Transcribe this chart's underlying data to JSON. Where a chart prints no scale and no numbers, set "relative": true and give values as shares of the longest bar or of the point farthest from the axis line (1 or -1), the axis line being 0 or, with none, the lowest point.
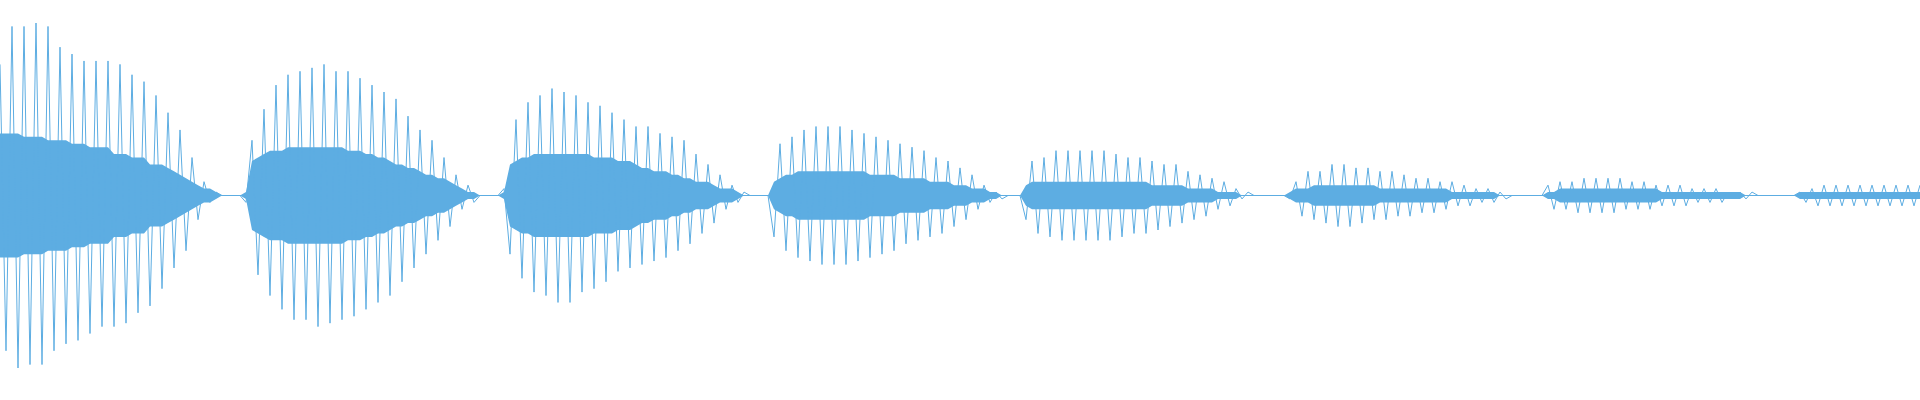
{
  "chart_data": {
    "type": "line",
    "relative": true,
    "categories": [
      null,
      null,
      null,
      null,
      null,
      null,
      null,
      null,
      null,
      null,
      null,
      null,
      null,
      null,
      null,
      null,
      null,
      null,
      null,
      null,
      null,
      null,
      null,
      null,
      null,
      null,
      null,
      null,
      null,
      null,
      null,
      null,
      null,
      null,
      null,
      null,
      null,
      null,
      null,
      null,
      null,
      null,
      null,
      null,
      null,
      null,
      null,
      null,
      null,
      null,
      null,
      null,
      null,
      null,
      null,
      null,
      null,
      null,
      null,
      null,
      null,
      null,
      null,
      null,
      null,
      null,
      null,
      null,
      null,
      null,
      null,
      null,
      null,
      null,
      null,
      null,
      null,
      null,
      null,
      null,
      null,
      null,
      null,
      null,
      null,
      null,
      null,
      null,
      null,
      null,
      null,
      null,
      null,
      null,
      null,
      null,
      null,
      null,
      null,
      null,
      null,
      null,
      null,
      null,
      null,
      null,
      null,
      null,
      null,
      null,
      null,
      null,
      null,
      null,
      null,
      null,
      null,
      null,
      null,
      null,
      null,
      null,
      null,
      null,
      null,
      null,
      null,
      null,
      null,
      null,
      null,
      null,
      null,
      null,
      null,
      null,
      null,
      null,
      null,
      null,
      null,
      null,
      null,
      null,
      null,
      null,
      null,
      null,
      null,
      null,
      null,
      null,
      null,
      null,
      null,
      null,
      null,
      null,
      null,
      null,
      null,
      null,
      null,
      null,
      null,
      null,
      null,
      null,
      null,
      null,
      null,
      null,
      null,
      null,
      null,
      null,
      null,
      null,
      null,
      null,
      null,
      null,
      null,
      null,
      null,
      null,
      null,
      null,
      null,
      null,
      null,
      null,
      null,
      null,
      null,
      null,
      null,
      null,
      null,
      null,
      null,
      null,
      null,
      null,
      null,
      null,
      null,
      null,
      null,
      null,
      null,
      null,
      null,
      null,
      null,
      null,
      null,
      null,
      null,
      null,
      null,
      null,
      null,
      null,
      null,
      null,
      null,
      null,
      null,
      null,
      null,
      null,
      null,
      null,
      null,
      null,
      null,
      null,
      null,
      null,
      null,
      null,
      null,
      null,
      null,
      null,
      null,
      null,
      null,
      null,
      null,
      null,
      null,
      null,
      null,
      null,
      null,
      null,
      null,
      null,
      null,
      null,
      null,
      null,
      null,
      null,
      null,
      null,
      null,
      null,
      null,
      null,
      null,
      null,
      null,
      null,
      null,
      null,
      null,
      null,
      null,
      null,
      null,
      null,
      null,
      null,
      null,
      null,
      null,
      null,
      null,
      null,
      null,
      null,
      null,
      null,
      null,
      null,
      null,
      null,
      null,
      null,
      null,
      null,
      null,
      null,
      null,
      null,
      null,
      null,
      null,
      null,
      null,
      null,
      null,
      null,
      null,
      null,
      null,
      null,
      null
    ],
    "ref_lines": [
      {
        "axis": "y",
        "value": 0,
        "color": "#5dade2"
      }
    ],
    "series": [
      {
        "color": "#5dade2",
        "values": [
          0.76,
          -0.9,
          0.98,
          -1,
          0.98,
          -0.98,
          1,
          -0.98,
          0.98,
          -0.9,
          0.86,
          -0.86,
          0.82,
          -0.84,
          0.78,
          -0.8,
          0.78,
          -0.76,
          0.78,
          -0.76,
          0.76,
          -0.74,
          0.7,
          -0.68,
          0.66,
          -0.64,
          0.58,
          -0.54,
          0.48,
          -0.42,
          0.38,
          -0.32,
          0.22,
          -0.14,
          0.08,
          -0.04,
          0.02,
          0,
          0,
          0,
          0,
          -0.04,
          0.32,
          -0.46,
          0.5,
          -0.58,
          0.64,
          -0.66,
          0.7,
          -0.72,
          0.72,
          -0.72,
          0.74,
          -0.76,
          0.76,
          -0.74,
          0.72,
          -0.72,
          0.72,
          -0.7,
          0.68,
          -0.66,
          0.64,
          -0.62,
          0.6,
          -0.58,
          0.56,
          -0.5,
          0.46,
          -0.42,
          0.38,
          -0.34,
          0.32,
          -0.26,
          0.22,
          -0.18,
          0.12,
          -0.08,
          0.06,
          -0.04,
          0,
          0,
          0,
          0,
          0.04,
          -0.34,
          0.44,
          -0.48,
          0.54,
          -0.56,
          0.58,
          -0.58,
          0.62,
          -0.62,
          0.6,
          -0.62,
          0.58,
          -0.56,
          0.54,
          -0.54,
          0.52,
          -0.5,
          0.48,
          -0.44,
          0.44,
          -0.42,
          0.4,
          -0.4,
          0.4,
          -0.38,
          0.36,
          -0.36,
          0.34,
          -0.32,
          0.32,
          -0.28,
          0.24,
          -0.22,
          0.18,
          -0.16,
          0.12,
          -0.08,
          0.06,
          -0.04,
          0.02,
          0,
          0,
          0,
          0,
          -0.24,
          0.3,
          -0.32,
          0.34,
          -0.36,
          0.38,
          -0.38,
          0.4,
          -0.4,
          0.4,
          -0.4,
          0.4,
          -0.4,
          0.38,
          -0.38,
          0.36,
          -0.36,
          0.34,
          -0.34,
          0.32,
          -0.32,
          0.3,
          -0.28,
          0.28,
          -0.26,
          0.26,
          -0.24,
          0.22,
          -0.22,
          0.2,
          -0.18,
          0.16,
          -0.14,
          0.12,
          -0.08,
          0.06,
          -0.04,
          0.02,
          -0.02,
          0,
          0,
          0,
          -0.14,
          0.2,
          -0.22,
          0.22,
          -0.24,
          0.26,
          -0.26,
          0.26,
          -0.26,
          0.26,
          -0.26,
          0.26,
          -0.26,
          0.26,
          -0.26,
          0.24,
          -0.24,
          0.22,
          -0.22,
          0.22,
          -0.22,
          0.2,
          -0.2,
          0.18,
          -0.18,
          0.18,
          -0.16,
          0.14,
          -0.14,
          0.12,
          -0.12,
          0.1,
          -0.08,
          0.08,
          -0.06,
          0.04,
          -0.02,
          0.02,
          0,
          0,
          0,
          0,
          0,
          0,
          -0.02,
          0.08,
          -0.12,
          0.14,
          -0.14,
          0.14,
          -0.16,
          0.18,
          -0.18,
          0.18,
          -0.18,
          0.16,
          -0.16,
          0.16,
          -0.14,
          0.14,
          -0.14,
          0.14,
          -0.12,
          0.12,
          -0.12,
          0.1,
          -0.1,
          0.1,
          -0.1,
          0.08,
          -0.08,
          0.08,
          -0.06,
          0.06,
          -0.06,
          0.04,
          -0.04,
          0.04,
          -0.04,
          0.02,
          -0.02,
          0,
          0,
          0,
          0,
          0,
          0,
          0.06,
          -0.08,
          0.08,
          -0.08,
          0.08,
          -0.1,
          0.1,
          -0.1,
          0.1,
          -0.1,
          0.1,
          -0.1,
          0.1,
          -0.08,
          0.08,
          -0.08,
          0.08,
          -0.08,
          0.06,
          -0.06,
          0.06,
          -0.06,
          0.06,
          -0.06,
          0.04,
          -0.04,
          0.04,
          -0.04,
          0.04,
          -0.04,
          0.02,
          -0.02,
          0.02,
          -0.02,
          0.02,
          0,
          0,
          0,
          0,
          0,
          0,
          0,
          0.02,
          -0.04,
          0.04,
          -0.06,
          0.06,
          -0.06,
          0.06,
          -0.06,
          0.06,
          -0.06,
          0.06,
          -0.06,
          0.06,
          -0.06,
          0.06,
          -0.06,
          0.06,
          -0.06,
          0.06,
          -0.06,
          0.06
        ],
        "upper": [
          0.36,
          0.36,
          0.36,
          0.36,
          0.34,
          0.34,
          0.34,
          0.34,
          0.32,
          0.32,
          0.32,
          0.32,
          0.3,
          0.3,
          0.3,
          0.28,
          0.28,
          0.28,
          0.28,
          0.24,
          0.24,
          0.24,
          0.22,
          0.22,
          0.22,
          0.18,
          0.18,
          0.18,
          0.16,
          0.14,
          0.12,
          0.1,
          0.08,
          0.06,
          0.04,
          0.04,
          0.02,
          0,
          0,
          0,
          0,
          0.02,
          0.2,
          0.22,
          0.24,
          0.26,
          0.26,
          0.26,
          0.28,
          0.28,
          0.28,
          0.28,
          0.28,
          0.28,
          0.28,
          0.28,
          0.28,
          0.28,
          0.26,
          0.26,
          0.26,
          0.24,
          0.24,
          0.22,
          0.22,
          0.2,
          0.18,
          0.18,
          0.16,
          0.16,
          0.14,
          0.12,
          0.12,
          0.1,
          0.1,
          0.08,
          0.06,
          0.04,
          0.02,
          0.02,
          0,
          0,
          0,
          0,
          0.02,
          0.18,
          0.2,
          0.22,
          0.22,
          0.24,
          0.24,
          0.24,
          0.24,
          0.24,
          0.24,
          0.24,
          0.24,
          0.24,
          0.24,
          0.22,
          0.22,
          0.22,
          0.22,
          0.2,
          0.2,
          0.2,
          0.18,
          0.16,
          0.16,
          0.14,
          0.14,
          0.14,
          0.12,
          0.12,
          0.1,
          0.1,
          0.08,
          0.08,
          0.08,
          0.06,
          0.04,
          0.04,
          0.04,
          0.02,
          0,
          0,
          0,
          0,
          0,
          0.08,
          0.1,
          0.12,
          0.12,
          0.14,
          0.14,
          0.14,
          0.14,
          0.14,
          0.14,
          0.14,
          0.14,
          0.14,
          0.14,
          0.14,
          0.14,
          0.12,
          0.12,
          0.12,
          0.12,
          0.12,
          0.1,
          0.1,
          0.1,
          0.1,
          0.1,
          0.08,
          0.08,
          0.08,
          0.08,
          0.06,
          0.06,
          0.06,
          0.04,
          0.04,
          0.04,
          0.02,
          0.02,
          0,
          0,
          0,
          0,
          0.06,
          0.08,
          0.08,
          0.08,
          0.08,
          0.08,
          0.08,
          0.08,
          0.08,
          0.08,
          0.08,
          0.08,
          0.08,
          0.08,
          0.08,
          0.08,
          0.08,
          0.08,
          0.08,
          0.08,
          0.08,
          0.06,
          0.06,
          0.06,
          0.06,
          0.06,
          0.06,
          0.04,
          0.04,
          0.04,
          0.04,
          0.04,
          0.02,
          0.02,
          0.02,
          0.02,
          0,
          0,
          0,
          0,
          0,
          0,
          0,
          0,
          0.02,
          0.04,
          0.04,
          0.04,
          0.06,
          0.06,
          0.06,
          0.06,
          0.06,
          0.06,
          0.06,
          0.06,
          0.06,
          0.06,
          0.06,
          0.04,
          0.04,
          0.04,
          0.04,
          0.04,
          0.04,
          0.04,
          0.04,
          0.04,
          0.04,
          0.04,
          0.04,
          0.02,
          0.02,
          0.02,
          0.02,
          0.02,
          0.02,
          0.02,
          0.02,
          0,
          0,
          0,
          0,
          0,
          0,
          0,
          0,
          0.02,
          0.02,
          0.04,
          0.04,
          0.04,
          0.04,
          0.04,
          0.04,
          0.04,
          0.04,
          0.04,
          0.04,
          0.04,
          0.04,
          0.04,
          0.04,
          0.04,
          0.04,
          0.04,
          0.02,
          0.02,
          0.02,
          0.02,
          0.02,
          0.02,
          0.02,
          0.02,
          0.02,
          0.02,
          0.02,
          0.02,
          0.02,
          0.02,
          0,
          0,
          0,
          0,
          0,
          0,
          0,
          0,
          0,
          0.02,
          0.02,
          0.02,
          0.02,
          0.02,
          0.02,
          0.02,
          0.02,
          0.02,
          0.02,
          0.02,
          0.02,
          0.02,
          0.02,
          0.02,
          0.02,
          0.02,
          0.02,
          0.02,
          0.02,
          0.02
        ],
        "lower": [
          -0.36,
          -0.36,
          -0.36,
          -0.36,
          -0.34,
          -0.34,
          -0.34,
          -0.34,
          -0.32,
          -0.32,
          -0.32,
          -0.32,
          -0.3,
          -0.3,
          -0.3,
          -0.28,
          -0.28,
          -0.28,
          -0.28,
          -0.24,
          -0.24,
          -0.24,
          -0.22,
          -0.22,
          -0.22,
          -0.18,
          -0.18,
          -0.18,
          -0.16,
          -0.14,
          -0.12,
          -0.1,
          -0.08,
          -0.06,
          -0.04,
          -0.04,
          -0.02,
          0,
          0,
          0,
          0,
          -0.02,
          -0.2,
          -0.22,
          -0.24,
          -0.26,
          -0.26,
          -0.26,
          -0.28,
          -0.28,
          -0.28,
          -0.28,
          -0.28,
          -0.28,
          -0.28,
          -0.28,
          -0.28,
          -0.28,
          -0.26,
          -0.26,
          -0.26,
          -0.24,
          -0.24,
          -0.22,
          -0.22,
          -0.2,
          -0.18,
          -0.18,
          -0.16,
          -0.16,
          -0.14,
          -0.12,
          -0.12,
          -0.1,
          -0.1,
          -0.08,
          -0.06,
          -0.04,
          -0.02,
          -0.02,
          0,
          0,
          0,
          0,
          -0.02,
          -0.18,
          -0.2,
          -0.22,
          -0.22,
          -0.24,
          -0.24,
          -0.24,
          -0.24,
          -0.24,
          -0.24,
          -0.24,
          -0.24,
          -0.24,
          -0.24,
          -0.22,
          -0.22,
          -0.22,
          -0.22,
          -0.2,
          -0.2,
          -0.2,
          -0.18,
          -0.16,
          -0.16,
          -0.14,
          -0.14,
          -0.14,
          -0.12,
          -0.12,
          -0.1,
          -0.1,
          -0.08,
          -0.08,
          -0.08,
          -0.06,
          -0.04,
          -0.04,
          -0.04,
          -0.02,
          0,
          0,
          0,
          0,
          0,
          -0.08,
          -0.1,
          -0.12,
          -0.12,
          -0.14,
          -0.14,
          -0.14,
          -0.14,
          -0.14,
          -0.14,
          -0.14,
          -0.14,
          -0.14,
          -0.14,
          -0.14,
          -0.14,
          -0.12,
          -0.12,
          -0.12,
          -0.12,
          -0.12,
          -0.1,
          -0.1,
          -0.1,
          -0.1,
          -0.1,
          -0.08,
          -0.08,
          -0.08,
          -0.08,
          -0.06,
          -0.06,
          -0.06,
          -0.04,
          -0.04,
          -0.04,
          -0.02,
          -0.02,
          0,
          0,
          0,
          0,
          -0.06,
          -0.08,
          -0.08,
          -0.08,
          -0.08,
          -0.08,
          -0.08,
          -0.08,
          -0.08,
          -0.08,
          -0.08,
          -0.08,
          -0.08,
          -0.08,
          -0.08,
          -0.08,
          -0.08,
          -0.08,
          -0.08,
          -0.08,
          -0.08,
          -0.06,
          -0.06,
          -0.06,
          -0.06,
          -0.06,
          -0.06,
          -0.04,
          -0.04,
          -0.04,
          -0.04,
          -0.04,
          -0.02,
          -0.02,
          -0.02,
          -0.02,
          0,
          0,
          0,
          0,
          0,
          0,
          0,
          0,
          -0.02,
          -0.04,
          -0.04,
          -0.04,
          -0.06,
          -0.06,
          -0.06,
          -0.06,
          -0.06,
          -0.06,
          -0.06,
          -0.06,
          -0.06,
          -0.06,
          -0.06,
          -0.04,
          -0.04,
          -0.04,
          -0.04,
          -0.04,
          -0.04,
          -0.04,
          -0.04,
          -0.04,
          -0.04,
          -0.04,
          -0.04,
          -0.02,
          -0.02,
          -0.02,
          -0.02,
          -0.02,
          -0.02,
          -0.02,
          -0.02,
          0,
          0,
          0,
          0,
          0,
          0,
          0,
          0,
          -0.02,
          -0.02,
          -0.04,
          -0.04,
          -0.04,
          -0.04,
          -0.04,
          -0.04,
          -0.04,
          -0.04,
          -0.04,
          -0.04,
          -0.04,
          -0.04,
          -0.04,
          -0.04,
          -0.04,
          -0.04,
          -0.04,
          -0.02,
          -0.02,
          -0.02,
          -0.02,
          -0.02,
          -0.02,
          -0.02,
          -0.02,
          -0.02,
          -0.02,
          -0.02,
          -0.02,
          -0.02,
          -0.02,
          0,
          0,
          0,
          0,
          0,
          0,
          0,
          0,
          0,
          -0.02,
          -0.02,
          -0.02,
          -0.02,
          -0.02,
          -0.02,
          -0.02,
          -0.02,
          -0.02,
          -0.02,
          -0.02,
          -0.02,
          -0.02,
          -0.02,
          -0.02,
          -0.02,
          -0.02,
          -0.02,
          -0.02,
          -0.02,
          -0.02
        ]
      }
    ]
  }
}
